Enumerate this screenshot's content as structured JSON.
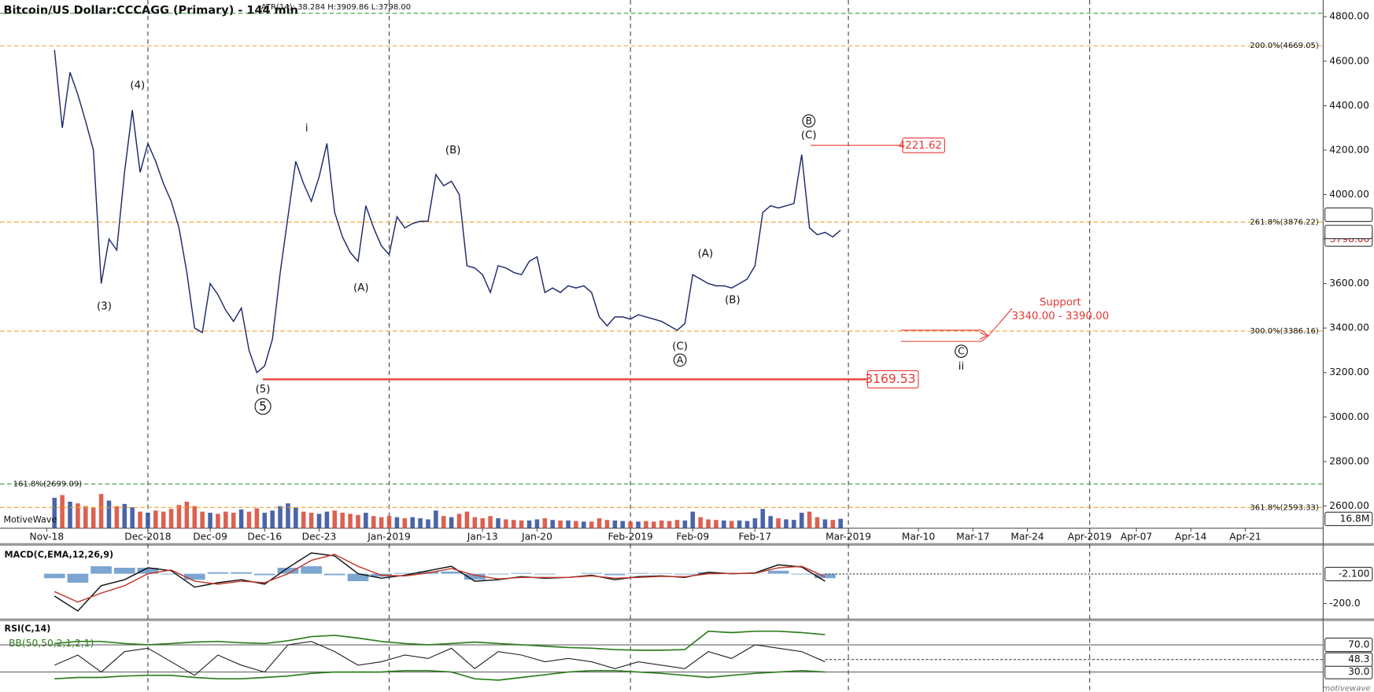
{
  "brand": "MotiveWave",
  "footer": "motivewave",
  "chart_data": [
    {
      "type": "line",
      "title": "Bitcoin/US Dollar:CCCAGG (Primary) - 144 min",
      "subtitle": "ATR(14): 38.284 H:3909.86 L:3798.00",
      "x": [
        "2018-11-19",
        "2018-11-20",
        "2018-11-21",
        "2018-11-22",
        "2018-11-23",
        "2018-11-24",
        "2018-11-25",
        "2018-11-26",
        "2018-11-27",
        "2018-11-28",
        "2018-11-29",
        "2018-11-30",
        "2018-12-01",
        "2018-12-02",
        "2018-12-03",
        "2018-12-04",
        "2018-12-05",
        "2018-12-06",
        "2018-12-07",
        "2018-12-08",
        "2018-12-09",
        "2018-12-10",
        "2018-12-11",
        "2018-12-12",
        "2018-12-13",
        "2018-12-14",
        "2018-12-15",
        "2018-12-16",
        "2018-12-17",
        "2018-12-18",
        "2018-12-19",
        "2018-12-20",
        "2018-12-21",
        "2018-12-22",
        "2018-12-23",
        "2018-12-24",
        "2018-12-25",
        "2018-12-26",
        "2018-12-27",
        "2018-12-28",
        "2018-12-29",
        "2018-12-30",
        "2018-12-31",
        "2019-01-01",
        "2019-01-02",
        "2019-01-03",
        "2019-01-04",
        "2019-01-05",
        "2019-01-06",
        "2019-01-07",
        "2019-01-08",
        "2019-01-09",
        "2019-01-10",
        "2019-01-11",
        "2019-01-12",
        "2019-01-13",
        "2019-01-14",
        "2019-01-15",
        "2019-01-16",
        "2019-01-17",
        "2019-01-18",
        "2019-01-19",
        "2019-01-20",
        "2019-01-21",
        "2019-01-22",
        "2019-01-23",
        "2019-01-24",
        "2019-01-25",
        "2019-01-26",
        "2019-01-27",
        "2019-01-28",
        "2019-01-29",
        "2019-01-30",
        "2019-01-31",
        "2019-02-01",
        "2019-02-02",
        "2019-02-03",
        "2019-02-04",
        "2019-02-05",
        "2019-02-06",
        "2019-02-07",
        "2019-02-08",
        "2019-02-09",
        "2019-02-10",
        "2019-02-11",
        "2019-02-12",
        "2019-02-13",
        "2019-02-14",
        "2019-02-15",
        "2019-02-16",
        "2019-02-17",
        "2019-02-18",
        "2019-02-19",
        "2019-02-20",
        "2019-02-21",
        "2019-02-22",
        "2019-02-23",
        "2019-02-24",
        "2019-02-25",
        "2019-02-26",
        "2019-02-27",
        "2019-02-28"
      ],
      "series": [
        {
          "color": "#1f2a6b",
          "values": [
            4650,
            4300,
            4550,
            4450,
            4330,
            4200,
            3600,
            3800,
            3750,
            4100,
            4380,
            4100,
            4230,
            4150,
            4050,
            3970,
            3850,
            3650,
            3400,
            3380,
            3600,
            3550,
            3480,
            3430,
            3490,
            3300,
            3200,
            3230,
            3350,
            3650,
            3900,
            4150,
            4050,
            3970,
            4080,
            4230,
            3920,
            3810,
            3740,
            3700,
            3950,
            3850,
            3770,
            3730,
            3900,
            3850,
            3870,
            3880,
            3880,
            4090,
            4040,
            4060,
            4000,
            3680,
            3670,
            3640,
            3560,
            3680,
            3670,
            3650,
            3640,
            3700,
            3720,
            3560,
            3580,
            3560,
            3590,
            3580,
            3590,
            3560,
            3450,
            3410,
            3450,
            3450,
            3440,
            3460,
            3450,
            3440,
            3430,
            3410,
            3390,
            3420,
            3640,
            3620,
            3600,
            3590,
            3590,
            3580,
            3600,
            3620,
            3680,
            3920,
            3950,
            3940,
            3950,
            3960,
            4180,
            3850,
            3820,
            3830,
            3810,
            3840
          ]
        }
      ],
      "volume": {
        "ylim": [
          0,
          100
        ],
        "up_color": "#2b4a9a",
        "down_color": "#d64532",
        "values": [
          55,
          60,
          48,
          45,
          40,
          38,
          62,
          50,
          40,
          44,
          38,
          30,
          28,
          32,
          30,
          35,
          42,
          48,
          40,
          30,
          28,
          26,
          30,
          28,
          34,
          30,
          36,
          28,
          32,
          40,
          45,
          38,
          30,
          28,
          26,
          30,
          32,
          28,
          26,
          24,
          28,
          22,
          20,
          22,
          20,
          18,
          20,
          18,
          16,
          32,
          22,
          20,
          26,
          30,
          20,
          18,
          22,
          18,
          16,
          15,
          14,
          14,
          16,
          18,
          15,
          14,
          14,
          13,
          12,
          12,
          18,
          15,
          14,
          13,
          12,
          12,
          13,
          12,
          14,
          13,
          15,
          14,
          30,
          20,
          16,
          15,
          14,
          13,
          14,
          13,
          18,
          35,
          22,
          18,
          16,
          15,
          28,
          30,
          20,
          16,
          15,
          17
        ],
        "marker": {
          "value": 16.8,
          "label": "16.8M"
        }
      },
      "xlim": [
        "2018-11-12",
        "2019-05-01"
      ],
      "xticks": [
        {
          "value": "2018-11-18",
          "label": "Nov-18"
        },
        {
          "value": "2018-12-01",
          "label": "Dec-2018"
        },
        {
          "value": "2018-12-09",
          "label": "Dec-09"
        },
        {
          "value": "2018-12-16",
          "label": "Dec-16"
        },
        {
          "value": "2018-12-23",
          "label": "Dec-23"
        },
        {
          "value": "2019-01-01",
          "label": "Jan-2019"
        },
        {
          "value": "2019-01-13",
          "label": "Jan-13"
        },
        {
          "value": "2019-01-20",
          "label": "Jan-20"
        },
        {
          "value": "2019-02-01",
          "label": "Feb-2019"
        },
        {
          "value": "2019-02-09",
          "label": "Feb-09"
        },
        {
          "value": "2019-02-17",
          "label": "Feb-17"
        },
        {
          "value": "2019-03-01",
          "label": "Mar-2019"
        },
        {
          "value": "2019-03-10",
          "label": "Mar-10"
        },
        {
          "value": "2019-03-17",
          "label": "Mar-17"
        },
        {
          "value": "2019-03-24",
          "label": "Mar-24"
        },
        {
          "value": "2019-04-01",
          "label": "Apr-2019"
        },
        {
          "value": "2019-04-07",
          "label": "Apr-07"
        },
        {
          "value": "2019-04-14",
          "label": "Apr-14"
        },
        {
          "value": "2019-04-21",
          "label": "Apr-21"
        }
      ],
      "xgrid": [
        "2018-12-01",
        "2019-01-01",
        "2019-02-01",
        "2019-03-01",
        "2019-04-01"
      ],
      "ylim": [
        2500,
        4875
      ],
      "yticks": [
        {
          "value": 2600,
          "label": "2600.00"
        },
        {
          "value": 2800,
          "label": "2800.00"
        },
        {
          "value": 3000,
          "label": "3000.00"
        },
        {
          "value": 3200,
          "label": "3200.00"
        },
        {
          "value": 3400,
          "label": "3400.00"
        },
        {
          "value": 3600,
          "label": "3600.00"
        },
        {
          "value": 3800,
          "label": "3800.00"
        },
        {
          "value": 4000,
          "label": "4000.00"
        },
        {
          "value": 4200,
          "label": "4200.00"
        },
        {
          "value": 4400,
          "label": "4400.00"
        },
        {
          "value": 4600,
          "label": "4600.00"
        },
        {
          "value": 4800,
          "label": "4800.00"
        }
      ],
      "levels": [
        {
          "value": 4815,
          "color": "#3a9a3a"
        },
        {
          "value": 4669.05,
          "label": "200.0%(4669.05)",
          "color": "#f0a030"
        },
        {
          "value": 3876.22,
          "label": "261.8%(3876.22)",
          "color": "#f0a030"
        },
        {
          "value": 3386.16,
          "label": "300.0%(3386.16)",
          "color": "#f0a030"
        },
        {
          "value": 2699.09,
          "label": "161.8%(2699.09)",
          "color": "#3a9a3a",
          "label_side": "left"
        },
        {
          "value": 2593.33,
          "label": "361.8%(2593.33)",
          "color": "#f0a030"
        }
      ],
      "price_markers": [
        {
          "value": 3909.86,
          "color": "#222222"
        },
        {
          "value": 3798,
          "label": "3798.00",
          "color": "#c62828"
        },
        {
          "value": 3832.11,
          "color": "#222222"
        }
      ],
      "targets": [
        {
          "value": 4221.62,
          "color": "#e53935"
        },
        {
          "value": 3169.53,
          "color": "#e53935"
        }
      ],
      "support": {
        "label": "Support",
        "text": "3340.00 - 3390.00",
        "low": 3340,
        "high": 3390,
        "color": "#e53935"
      },
      "annotations": [
        "(4)",
        "(3)",
        "i",
        "(A)",
        "(B)",
        "(5)",
        "5",
        "(C)",
        "A",
        "(A)",
        "(B)",
        "B",
        "(C)",
        "C",
        "ii"
      ]
    },
    {
      "type": "macd",
      "title": "MACD(C,EMA,12,26,9)",
      "x": [
        "2018-11-19",
        "2018-11-22",
        "2018-11-25",
        "2018-11-28",
        "2018-12-01",
        "2018-12-04",
        "2018-12-07",
        "2018-12-10",
        "2018-12-13",
        "2018-12-16",
        "2018-12-19",
        "2018-12-22",
        "2018-12-25",
        "2018-12-28",
        "2018-12-31",
        "2019-01-03",
        "2019-01-06",
        "2019-01-09",
        "2019-01-12",
        "2019-01-15",
        "2019-01-18",
        "2019-01-21",
        "2019-01-24",
        "2019-01-27",
        "2019-01-30",
        "2019-02-02",
        "2019-02-05",
        "2019-02-08",
        "2019-02-11",
        "2019-02-14",
        "2019-02-17",
        "2019-02-20",
        "2019-02-23",
        "2019-02-26"
      ],
      "series": [
        {
          "color": "#111111",
          "values": [
            -150,
            -250,
            -80,
            -40,
            40,
            20,
            -90,
            -60,
            -40,
            -70,
            40,
            140,
            120,
            0,
            -30,
            -10,
            20,
            50,
            -50,
            -40,
            -20,
            -30,
            -25,
            -10,
            -40,
            -20,
            -15,
            -25,
            10,
            0,
            5,
            60,
            45,
            -50
          ]
        },
        {
          "color": "#c0392b",
          "values": [
            -120,
            -190,
            -130,
            -80,
            0,
            25,
            -50,
            -70,
            -50,
            -60,
            0,
            90,
            130,
            50,
            -10,
            -15,
            5,
            35,
            -10,
            -35,
            -25,
            -25,
            -25,
            -15,
            -30,
            -25,
            -18,
            -20,
            0,
            2,
            3,
            40,
            50,
            -20
          ]
        }
      ],
      "histogram": {
        "color": "#5b8fc7",
        "values": [
          -30,
          -60,
          50,
          40,
          40,
          -5,
          -40,
          10,
          10,
          -10,
          40,
          50,
          -10,
          -50,
          -20,
          5,
          15,
          15,
          -40,
          -5,
          5,
          -5,
          0,
          5,
          -10,
          5,
          3,
          -5,
          10,
          -2,
          2,
          20,
          -5,
          -30
        ]
      },
      "ylim": [
        -300,
        188
      ],
      "yticks": [
        {
          "value": -200,
          "label": "-200.0"
        }
      ],
      "marker": {
        "value": -2.1,
        "label": "-2.100"
      }
    },
    {
      "type": "rsi",
      "title": "RSI(C,14)",
      "subtitle": "BB(50,50,2,1,2,1)",
      "x": [
        "2018-11-19",
        "2018-11-22",
        "2018-11-25",
        "2018-11-28",
        "2018-12-01",
        "2018-12-04",
        "2018-12-07",
        "2018-12-10",
        "2018-12-13",
        "2018-12-16",
        "2018-12-19",
        "2018-12-22",
        "2018-12-25",
        "2018-12-28",
        "2018-12-31",
        "2019-01-03",
        "2019-01-06",
        "2019-01-09",
        "2019-01-12",
        "2019-01-15",
        "2019-01-18",
        "2019-01-21",
        "2019-01-24",
        "2019-01-27",
        "2019-01-30",
        "2019-02-02",
        "2019-02-05",
        "2019-02-08",
        "2019-02-11",
        "2019-02-14",
        "2019-02-17",
        "2019-02-20",
        "2019-02-23",
        "2019-02-26"
      ],
      "series": [
        {
          "color": "#222222",
          "values": [
            40,
            55,
            30,
            60,
            65,
            45,
            25,
            55,
            40,
            30,
            70,
            75,
            60,
            40,
            45,
            55,
            50,
            65,
            35,
            60,
            55,
            45,
            50,
            45,
            35,
            45,
            40,
            35,
            60,
            50,
            70,
            65,
            60,
            45
          ]
        }
      ],
      "bands": {
        "color": "#2e7d1e",
        "upper": [
          72,
          75,
          75,
          72,
          70,
          72,
          74,
          75,
          73,
          72,
          76,
          82,
          84,
          80,
          75,
          72,
          70,
          72,
          74,
          72,
          70,
          68,
          66,
          65,
          63,
          62,
          62,
          63,
          90,
          88,
          90,
          90,
          88,
          85
        ],
        "lower": [
          20,
          22,
          22,
          24,
          25,
          25,
          22,
          20,
          20,
          22,
          24,
          28,
          30,
          30,
          30,
          32,
          32,
          30,
          20,
          18,
          22,
          26,
          30,
          32,
          32,
          30,
          28,
          25,
          22,
          25,
          28,
          30,
          32,
          30
        ]
      },
      "ylim": [
        7,
        105
      ],
      "yticks": [
        {
          "value": 30,
          "label": "30.0"
        },
        {
          "value": 70,
          "label": "70.0"
        }
      ],
      "marker": {
        "value": 48.3
      }
    }
  ]
}
